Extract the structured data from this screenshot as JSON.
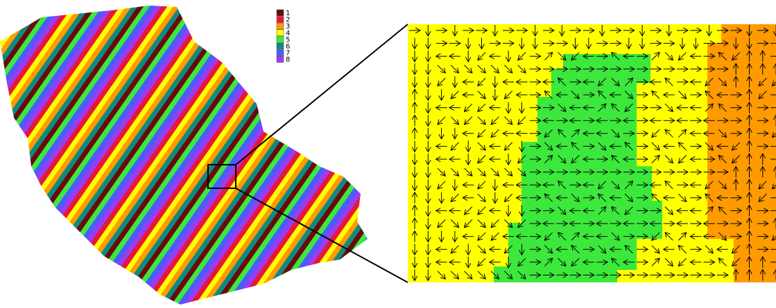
{
  "legend": {
    "items": [
      {
        "label": "1",
        "color": "#6b0a0a"
      },
      {
        "label": "2",
        "color": "#e8173a"
      },
      {
        "label": "3",
        "color": "#ff9a00"
      },
      {
        "label": "4",
        "color": "#ffff00"
      },
      {
        "label": "5",
        "color": "#3ce83c"
      },
      {
        "label": "6",
        "color": "#0f8a80"
      },
      {
        "label": "7",
        "color": "#4a5cff"
      },
      {
        "label": "8",
        "color": "#9a3cf0"
      }
    ]
  }
}
